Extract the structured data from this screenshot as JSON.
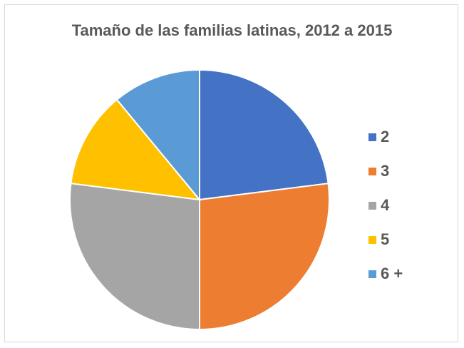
{
  "chart_data": {
    "type": "pie",
    "title": "Tamaño de las familias latinas, 2012 a 2015",
    "categories": [
      "2",
      "3",
      "4",
      "5",
      "6 +"
    ],
    "values": [
      23,
      27,
      27,
      12,
      11
    ],
    "colors": [
      "#4472c4",
      "#ed7d31",
      "#a5a5a5",
      "#ffc000",
      "#5b9bd5"
    ],
    "legend_position": "right"
  }
}
